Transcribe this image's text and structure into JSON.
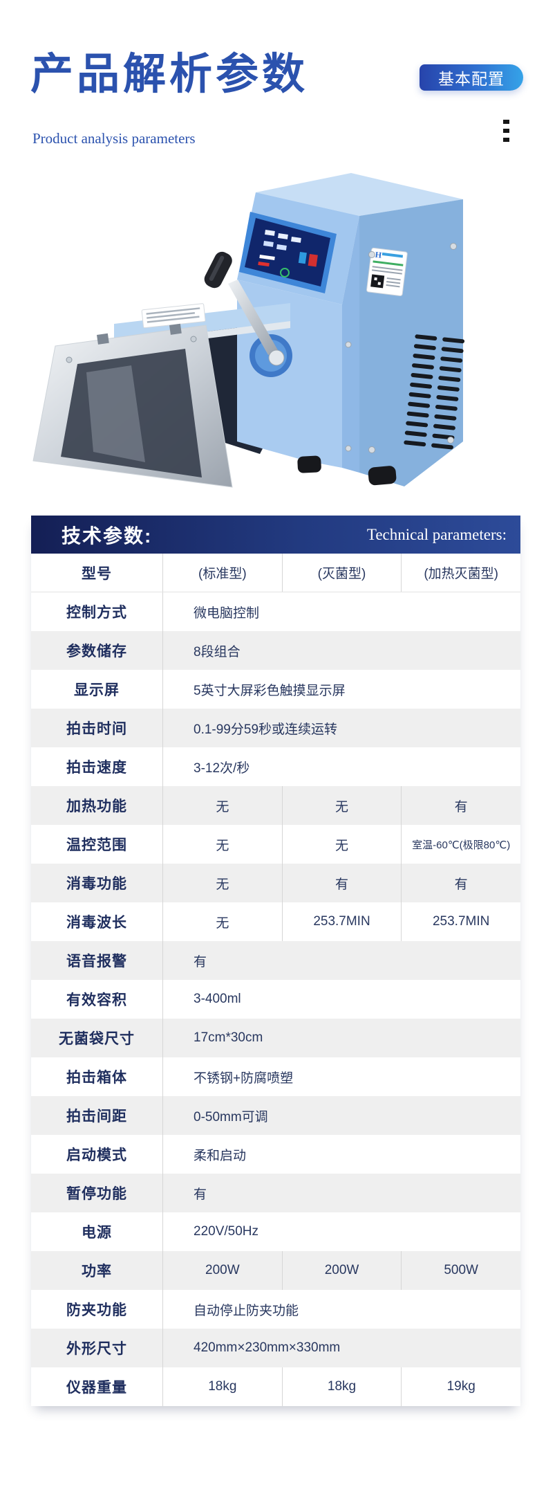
{
  "header": {
    "title": "产品解析参数",
    "subtitle": "Product analysis parameters",
    "badge_label": "基本配置"
  },
  "colors": {
    "title_blue": "#2b52ae",
    "badge_gradient": [
      "#2744ab",
      "#35a3e8"
    ],
    "table_header_gradient": [
      "#141f55",
      "#2d4b99"
    ],
    "row_alt_gray": "#efefef",
    "text_navy": "#28375f",
    "label_navy": "#1f2e5e",
    "machine_body_blue": "#a9cbf0"
  },
  "product_image": {
    "description": "蓝色拍击式无菌均质器产品照片",
    "screen_caption": "Sterile Homogenizer(Stomacher Blender)"
  },
  "table": {
    "header_cn": "技术参数:",
    "header_en": "Technical parameters:",
    "rows": [
      {
        "label": "型号",
        "span": false,
        "values": [
          "(标准型)",
          "(灭菌型)",
          "(加热灭菌型)"
        ]
      },
      {
        "label": "控制方式",
        "span": true,
        "values": [
          "微电脑控制"
        ]
      },
      {
        "label": "参数储存",
        "span": true,
        "values": [
          "8段组合"
        ]
      },
      {
        "label": "显示屏",
        "span": true,
        "values": [
          "5英寸大屏彩色触摸显示屏"
        ]
      },
      {
        "label": "拍击时间",
        "span": true,
        "values": [
          "0.1-99分59秒或连续运转"
        ]
      },
      {
        "label": "拍击速度",
        "span": true,
        "values": [
          "3-12次/秒"
        ]
      },
      {
        "label": "加热功能",
        "span": false,
        "values": [
          "无",
          "无",
          "有"
        ]
      },
      {
        "label": "温控范围",
        "span": false,
        "values": [
          "无",
          "无",
          "室温-60℃(极限80℃)"
        ]
      },
      {
        "label": "消毒功能",
        "span": false,
        "values": [
          "无",
          "有",
          "有"
        ]
      },
      {
        "label": "消毒波长",
        "span": false,
        "values": [
          "无",
          "253.7MIN",
          "253.7MIN"
        ]
      },
      {
        "label": "语音报警",
        "span": true,
        "values": [
          "有"
        ]
      },
      {
        "label": "有效容积",
        "span": true,
        "values": [
          "3-400ml"
        ]
      },
      {
        "label": "无菌袋尺寸",
        "span": true,
        "values": [
          "17cm*30cm"
        ]
      },
      {
        "label": "拍击箱体",
        "span": true,
        "values": [
          "不锈钢+防腐喷塑"
        ]
      },
      {
        "label": "拍击间距",
        "span": true,
        "values": [
          "0-50mm可调"
        ]
      },
      {
        "label": "启动模式",
        "span": true,
        "values": [
          "柔和启动"
        ]
      },
      {
        "label": "暂停功能",
        "span": true,
        "values": [
          "有"
        ]
      },
      {
        "label": "电源",
        "span": true,
        "values": [
          "220V/50Hz"
        ]
      },
      {
        "label": "功率",
        "span": false,
        "values": [
          "200W",
          "200W",
          "500W"
        ]
      },
      {
        "label": "防夹功能",
        "span": true,
        "values": [
          "自动停止防夹功能"
        ]
      },
      {
        "label": "外形尺寸",
        "span": true,
        "values": [
          "420mm×230mm×330mm"
        ]
      },
      {
        "label": "仪器重量",
        "span": false,
        "values": [
          "18kg",
          "18kg",
          "19kg"
        ]
      }
    ]
  }
}
